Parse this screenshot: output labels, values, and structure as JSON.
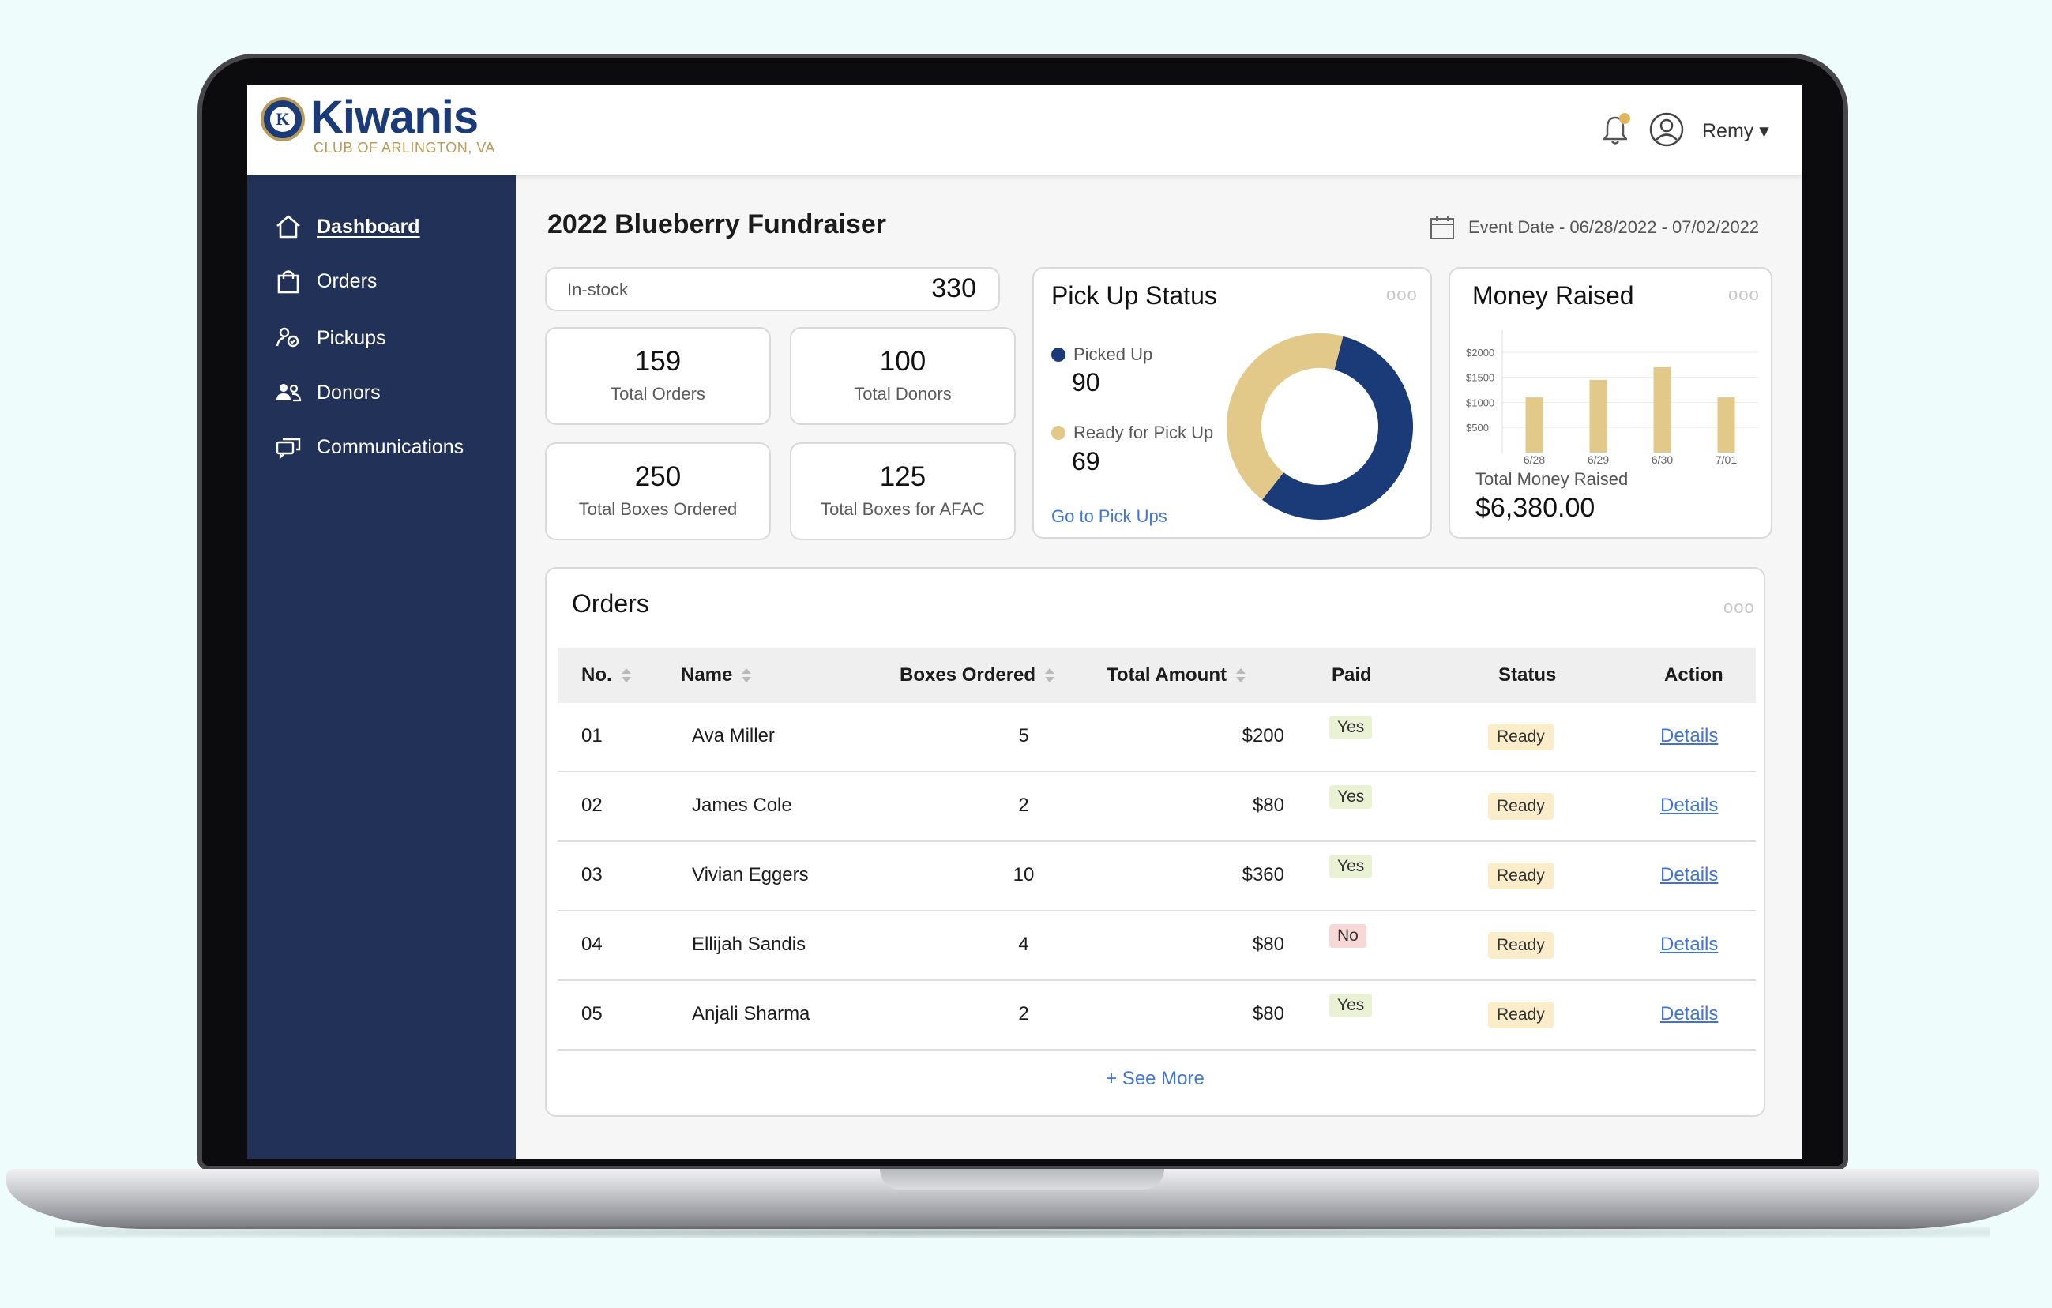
{
  "brand": {
    "name": "Kiwanis",
    "subtitle": "CLUB OF ARLINGTON, VA",
    "emblem_letter": "K"
  },
  "header": {
    "user_name": "Remy ▾"
  },
  "sidebar": {
    "items": [
      {
        "label": "Dashboard",
        "icon": "home-icon",
        "active": true
      },
      {
        "label": "Orders",
        "icon": "shopping-bag-icon"
      },
      {
        "label": "Pickups",
        "icon": "pickup-icon"
      },
      {
        "label": "Donors",
        "icon": "people-icon"
      },
      {
        "label": "Communications",
        "icon": "chat-icon"
      }
    ]
  },
  "page": {
    "title": "2022 Blueberry Fundraiser",
    "event_date": "Event Date - 06/28/2022 - 07/02/2022"
  },
  "instock": {
    "label": "In-stock",
    "value": "330"
  },
  "stats": [
    {
      "value": "159",
      "label": "Total Orders"
    },
    {
      "value": "100",
      "label": "Total Donors"
    },
    {
      "value": "250",
      "label": "Total Boxes Ordered"
    },
    {
      "value": "125",
      "label": "Total Boxes for AFAC"
    }
  ],
  "pickup_status": {
    "title": "Pick Up Status",
    "picked_up": {
      "label": "Picked Up",
      "value": "90",
      "color": "#1b3a78"
    },
    "ready": {
      "label": "Ready for Pick Up",
      "value": "69",
      "color": "#e2c98a"
    },
    "link": "Go to Pick Ups",
    "menu": "ooo"
  },
  "money_raised": {
    "title": "Money Raised",
    "total_label": "Total Money Raised",
    "total_value": "$6,380.00",
    "menu": "ooo",
    "chart_data": {
      "type": "bar",
      "categories": [
        "6/28",
        "6/29",
        "6/30",
        "7/01"
      ],
      "values": [
        1100,
        1450,
        1700,
        1100
      ],
      "ytick_labels": [
        "$2000",
        "$1500",
        "$1000",
        "$500"
      ],
      "yticks": [
        2000,
        1500,
        1000,
        500
      ],
      "ylim": [
        0,
        2000
      ],
      "grid": true,
      "bar_color": "#e2c98a"
    }
  },
  "orders": {
    "title": "Orders",
    "menu": "ooo",
    "columns": [
      "No.",
      "Name",
      "Boxes Ordered",
      "Total Amount",
      "Paid",
      "Status",
      "Action"
    ],
    "rows": [
      {
        "no": "01",
        "name": "Ava Miller",
        "boxes": "5",
        "amount": "$200",
        "paid": "Yes",
        "status": "Ready",
        "action": "Details"
      },
      {
        "no": "02",
        "name": "James Cole",
        "boxes": "2",
        "amount": "$80",
        "paid": "Yes",
        "status": "Ready",
        "action": "Details"
      },
      {
        "no": "03",
        "name": "Vivian Eggers",
        "boxes": "10",
        "amount": "$360",
        "paid": "Yes",
        "status": "Ready",
        "action": "Details"
      },
      {
        "no": "04",
        "name": "Ellijah Sandis",
        "boxes": "4",
        "amount": "$80",
        "paid": "No",
        "status": "Ready",
        "action": "Details"
      },
      {
        "no": "05",
        "name": "Anjali Sharma",
        "boxes": "2",
        "amount": "$80",
        "paid": "Yes",
        "status": "Ready",
        "action": "Details"
      }
    ],
    "see_more": "+ See More"
  }
}
